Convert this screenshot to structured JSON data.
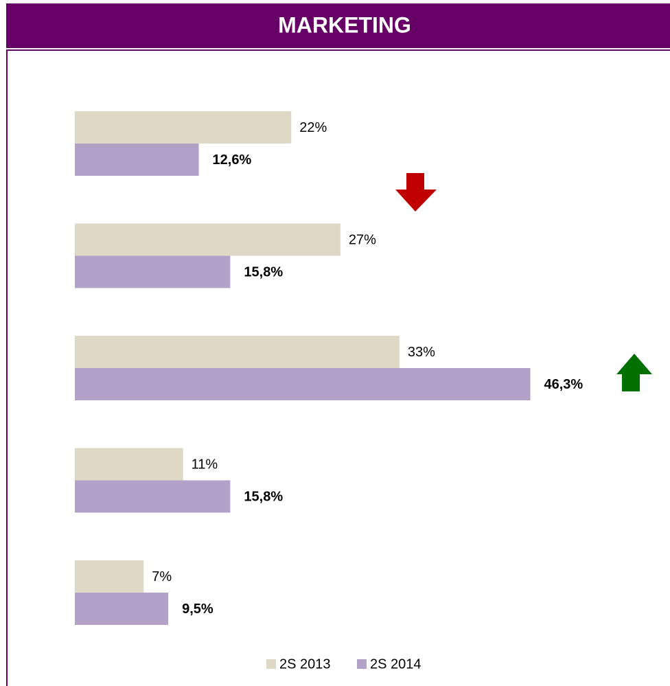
{
  "chart_data": {
    "type": "hbar",
    "title": "MARKETING",
    "categories": [
      null,
      null,
      null,
      null,
      null
    ],
    "series": [
      {
        "name": "2S 2013",
        "color": "#ddd9c4",
        "values": [
          22,
          27,
          33,
          11,
          7
        ],
        "value_labels": [
          "22%",
          "27%",
          "33%",
          "11%",
          "7%"
        ]
      },
      {
        "name": "2S 2014",
        "color": "#b3a2c7",
        "values": [
          12.6,
          15.8,
          46.3,
          15.8,
          9.5
        ],
        "value_labels": [
          "12,6%",
          "15,8%",
          "46,3%",
          "15,8%",
          "9,5%"
        ]
      }
    ]
  }
}
